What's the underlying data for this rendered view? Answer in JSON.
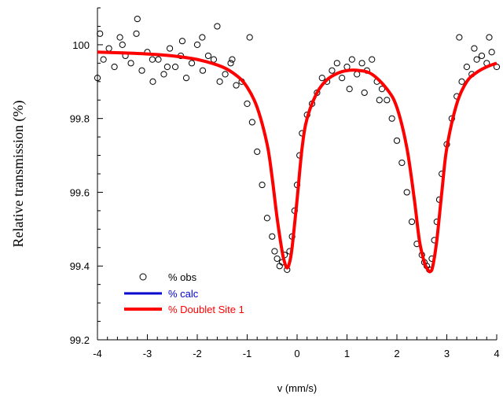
{
  "chart_data": {
    "type": "scatter",
    "xlabel": "v (mm/s)",
    "ylabel": "Relative transmission (%)",
    "xlim": [
      -4,
      4
    ],
    "ylim": [
      99.2,
      100.1
    ],
    "x_ticks": [
      -4,
      -3,
      -2,
      -1,
      0,
      1,
      2,
      3,
      4
    ],
    "x_tick_labels": [
      "-4",
      "-3",
      "-2",
      "-1",
      "0",
      "1",
      "2",
      "3",
      "4"
    ],
    "y_ticks": [
      99.2,
      99.4,
      99.6,
      99.8,
      100
    ],
    "y_tick_labels": [
      "99.2",
      "99.4",
      "99.6",
      "99.8",
      "100"
    ],
    "legend_position": "bottom-left",
    "series": [
      {
        "name": "% obs",
        "kind": "markers",
        "color": "#000000",
        "x": [
          -4.0,
          -3.88,
          -3.77,
          -3.66,
          -3.55,
          -3.44,
          -3.33,
          -3.22,
          -3.11,
          -3.0,
          -2.89,
          -2.78,
          -2.67,
          -2.55,
          -2.44,
          -2.33,
          -2.22,
          -2.11,
          -2.0,
          -1.89,
          -1.78,
          -1.67,
          -1.55,
          -1.44,
          -1.33,
          -1.22,
          -1.11,
          -1.0,
          -0.9,
          -0.8,
          -0.7,
          -0.6,
          -0.5,
          -0.45,
          -0.4,
          -0.35,
          -0.3,
          -0.25,
          -0.2,
          -0.15,
          -0.1,
          -0.05,
          0.0,
          0.05,
          0.1,
          0.2,
          0.3,
          0.4,
          0.5,
          0.6,
          0.7,
          0.8,
          0.9,
          1.0,
          1.1,
          1.2,
          1.3,
          1.4,
          1.5,
          1.6,
          1.7,
          1.8,
          1.9,
          2.0,
          2.1,
          2.2,
          2.3,
          2.4,
          2.5,
          2.55,
          2.6,
          2.65,
          2.7,
          2.75,
          2.8,
          2.85,
          2.9,
          3.0,
          3.1,
          3.2,
          3.3,
          3.4,
          3.5,
          3.6,
          3.7,
          3.8,
          3.9,
          4.0,
          -3.95,
          -3.5,
          -3.2,
          -2.9,
          -2.6,
          -2.3,
          -1.9,
          -1.6,
          -1.3,
          -0.95,
          1.05,
          1.35,
          1.65,
          3.25,
          3.55,
          3.85
        ],
        "y": [
          99.91,
          99.96,
          99.99,
          99.94,
          100.02,
          99.97,
          99.95,
          100.03,
          99.93,
          99.98,
          99.9,
          99.96,
          99.92,
          99.99,
          99.94,
          99.97,
          99.91,
          99.95,
          100.0,
          99.93,
          99.97,
          99.96,
          99.9,
          99.92,
          99.95,
          99.89,
          99.9,
          99.84,
          99.79,
          99.71,
          99.62,
          99.53,
          99.48,
          99.44,
          99.42,
          99.4,
          99.41,
          99.43,
          99.39,
          99.44,
          99.48,
          99.55,
          99.62,
          99.7,
          99.76,
          99.81,
          99.84,
          99.87,
          99.91,
          99.9,
          99.93,
          99.95,
          99.91,
          99.94,
          99.96,
          99.92,
          99.95,
          99.93,
          99.96,
          99.9,
          99.88,
          99.85,
          99.8,
          99.74,
          99.68,
          99.6,
          99.52,
          99.46,
          99.43,
          99.41,
          99.4,
          99.39,
          99.42,
          99.47,
          99.52,
          99.58,
          99.65,
          99.73,
          99.8,
          99.86,
          99.9,
          99.94,
          99.92,
          99.96,
          99.97,
          99.95,
          99.98,
          99.94,
          100.03,
          100.0,
          100.07,
          99.96,
          99.94,
          100.01,
          100.02,
          100.05,
          99.96,
          100.02,
          99.88,
          99.87,
          99.85,
          100.02,
          99.99,
          100.02
        ]
      },
      {
        "name": "% calc",
        "kind": "line",
        "color": "#0000cc",
        "x": [
          -4.0,
          -3.5,
          -3.0,
          -2.5,
          -2.0,
          -1.5,
          -1.2,
          -1.0,
          -0.8,
          -0.6,
          -0.5,
          -0.4,
          -0.3,
          -0.25,
          -0.2,
          -0.15,
          -0.1,
          0.0,
          0.1,
          0.2,
          0.4,
          0.6,
          0.8,
          1.0,
          1.25,
          1.5,
          1.8,
          2.0,
          2.2,
          2.35,
          2.45,
          2.55,
          2.62,
          2.67,
          2.72,
          2.8,
          2.9,
          3.0,
          3.2,
          3.4,
          3.6,
          3.8,
          4.0
        ],
        "y": [
          99.98,
          99.978,
          99.975,
          99.97,
          99.96,
          99.94,
          99.915,
          99.885,
          99.83,
          99.73,
          99.64,
          99.53,
          99.44,
          99.41,
          99.395,
          99.41,
          99.45,
          99.58,
          99.72,
          99.8,
          99.87,
          99.905,
          99.922,
          99.93,
          99.93,
          99.92,
          99.88,
          99.83,
          99.72,
          99.58,
          99.47,
          99.41,
          99.39,
          99.385,
          99.4,
          99.47,
          99.6,
          99.72,
          99.84,
          99.9,
          99.925,
          99.94,
          99.95
        ]
      },
      {
        "name": "% Doublet Site 1",
        "kind": "line",
        "color": "#ff0000",
        "x": [
          -4.0,
          -3.5,
          -3.0,
          -2.5,
          -2.0,
          -1.5,
          -1.2,
          -1.0,
          -0.8,
          -0.6,
          -0.5,
          -0.4,
          -0.3,
          -0.25,
          -0.2,
          -0.15,
          -0.1,
          0.0,
          0.1,
          0.2,
          0.4,
          0.6,
          0.8,
          1.0,
          1.25,
          1.5,
          1.8,
          2.0,
          2.2,
          2.35,
          2.45,
          2.55,
          2.62,
          2.67,
          2.72,
          2.8,
          2.9,
          3.0,
          3.2,
          3.4,
          3.6,
          3.8,
          4.0
        ],
        "y": [
          99.98,
          99.978,
          99.975,
          99.97,
          99.96,
          99.94,
          99.915,
          99.885,
          99.83,
          99.73,
          99.64,
          99.53,
          99.44,
          99.41,
          99.395,
          99.41,
          99.45,
          99.58,
          99.72,
          99.8,
          99.87,
          99.905,
          99.922,
          99.93,
          99.93,
          99.92,
          99.88,
          99.83,
          99.72,
          99.58,
          99.47,
          99.41,
          99.39,
          99.385,
          99.4,
          99.47,
          99.6,
          99.72,
          99.84,
          99.9,
          99.925,
          99.94,
          99.95
        ]
      }
    ]
  }
}
